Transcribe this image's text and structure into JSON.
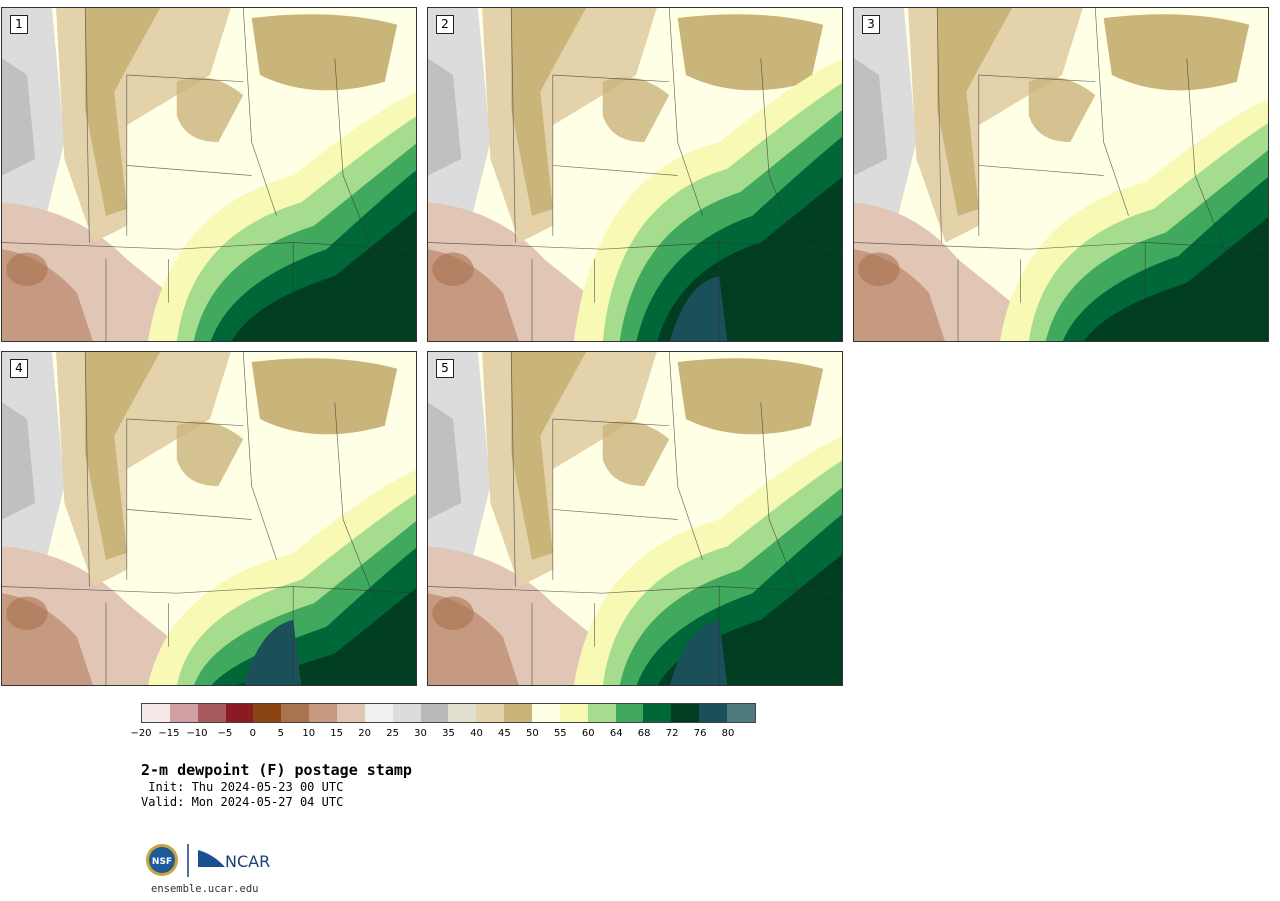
{
  "figure": {
    "title": "2-m dewpoint (F) postage stamp",
    "init": " Init: Thu 2024-05-23 00 UTC",
    "valid": "Valid: Mon 2024-05-27 04 UTC",
    "website": "ensemble.ucar.edu",
    "logos": {
      "nsf": "NSF",
      "ncar": "NCAR"
    }
  },
  "panels": [
    {
      "label": "1",
      "moist_front_level": 0.6,
      "dry_west_extent": 0.3
    },
    {
      "label": "2",
      "moist_front_level": 0.5,
      "dry_west_extent": 0.28
    },
    {
      "label": "3",
      "moist_front_level": 0.62,
      "dry_west_extent": 0.25
    },
    {
      "label": "4",
      "moist_front_level": 0.7,
      "dry_west_extent": 0.3
    },
    {
      "label": "5",
      "moist_front_level": 0.6,
      "dry_west_extent": 0.3
    }
  ],
  "colorbar": {
    "colors": [
      "#f6e9ea",
      "#d1a0a5",
      "#a85a5e",
      "#8b1a22",
      "#8a4512",
      "#a9734f",
      "#c59a80",
      "#e1c6b6",
      "#f1f1f1",
      "#dcdcdc",
      "#b9b9b9",
      "#e1dfd0",
      "#e3d2aa",
      "#c9b47a",
      "#ffffe6",
      "#f7f9b5",
      "#a6dc8e",
      "#41a95d",
      "#006838",
      "#003d21",
      "#1b4f59",
      "#4f7a7d"
    ],
    "tick_labels": [
      "−20",
      "−15",
      "−10",
      "−5",
      "0",
      "5",
      "10",
      "15",
      "20",
      "25",
      "30",
      "35",
      "40",
      "45",
      "50",
      "55",
      "60",
      "64",
      "68",
      "72",
      "76",
      "80"
    ]
  }
}
